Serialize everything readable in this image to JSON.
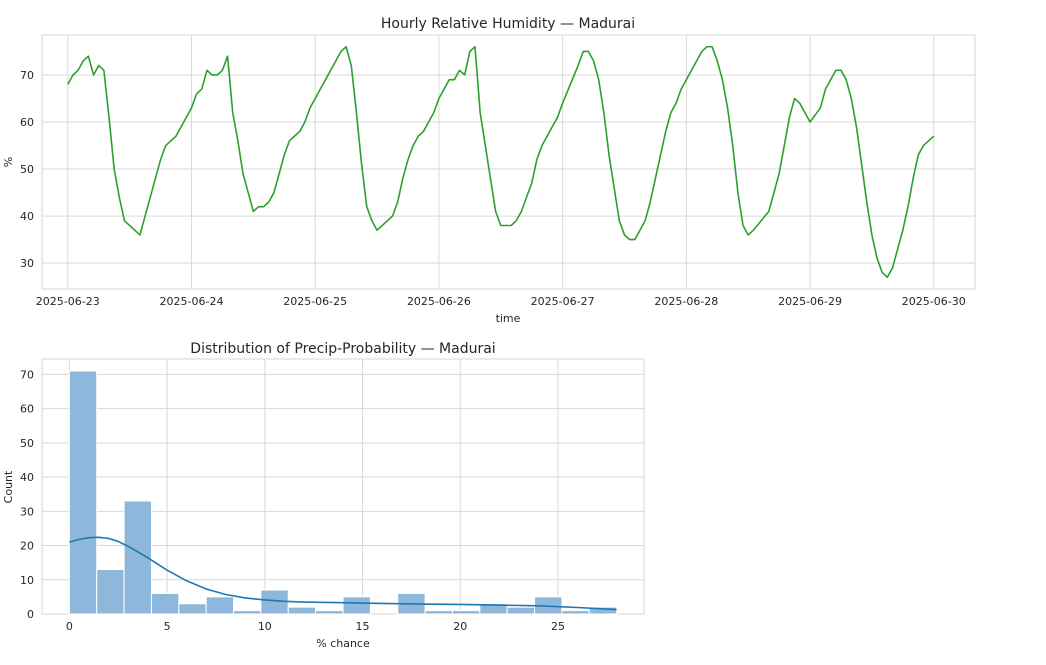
{
  "chart_data": [
    {
      "type": "line",
      "title": "Hourly Relative Humidity — Madurai",
      "xlabel": "time",
      "ylabel": "%",
      "xlim": [
        "2025-06-22 19:00",
        "2025-06-30 08:00"
      ],
      "ylim": [
        24.5,
        78.5
      ],
      "grid": true,
      "color": "#2ca02c",
      "x_ticks": [
        "2025-06-23",
        "2025-06-24",
        "2025-06-25",
        "2025-06-26",
        "2025-06-27",
        "2025-06-28",
        "2025-06-29",
        "2025-06-30"
      ],
      "y_ticks": [
        30,
        40,
        50,
        60,
        70
      ],
      "series": [
        {
          "points": [
            [
              "2025-06-23 00:00",
              68
            ],
            [
              "2025-06-23 01:00",
              70
            ],
            [
              "2025-06-23 02:00",
              71
            ],
            [
              "2025-06-23 03:00",
              73
            ],
            [
              "2025-06-23 04:00",
              74
            ],
            [
              "2025-06-23 05:00",
              70
            ],
            [
              "2025-06-23 06:00",
              72
            ],
            [
              "2025-06-23 07:00",
              71
            ],
            [
              "2025-06-23 08:00",
              61
            ],
            [
              "2025-06-23 09:00",
              50
            ],
            [
              "2025-06-23 10:00",
              44
            ],
            [
              "2025-06-23 11:00",
              39
            ],
            [
              "2025-06-23 14:00",
              36
            ],
            [
              "2025-06-23 15:00",
              40
            ],
            [
              "2025-06-23 17:00",
              48
            ],
            [
              "2025-06-23 18:00",
              52
            ],
            [
              "2025-06-23 19:00",
              55
            ],
            [
              "2025-06-23 21:00",
              57
            ],
            [
              "2025-06-24 00:00",
              63
            ],
            [
              "2025-06-24 01:00",
              66
            ],
            [
              "2025-06-24 02:00",
              67
            ],
            [
              "2025-06-24 03:00",
              71
            ],
            [
              "2025-06-24 04:00",
              70
            ],
            [
              "2025-06-24 05:00",
              70
            ],
            [
              "2025-06-24 06:00",
              71
            ],
            [
              "2025-06-24 07:00",
              74
            ],
            [
              "2025-06-24 08:00",
              62
            ],
            [
              "2025-06-24 09:00",
              56
            ],
            [
              "2025-06-24 10:00",
              49
            ],
            [
              "2025-06-24 11:00",
              45
            ],
            [
              "2025-06-24 12:00",
              41
            ],
            [
              "2025-06-24 13:00",
              42
            ],
            [
              "2025-06-24 14:00",
              42
            ],
            [
              "2025-06-24 15:00",
              43
            ],
            [
              "2025-06-24 16:00",
              45
            ],
            [
              "2025-06-24 17:00",
              49
            ],
            [
              "2025-06-24 18:00",
              53
            ],
            [
              "2025-06-24 19:00",
              56
            ],
            [
              "2025-06-24 20:00",
              57
            ],
            [
              "2025-06-24 21:00",
              58
            ],
            [
              "2025-06-24 22:00",
              60
            ],
            [
              "2025-06-24 23:00",
              63
            ],
            [
              "2025-06-25 03:00",
              71
            ],
            [
              "2025-06-25 05:00",
              75
            ],
            [
              "2025-06-25 06:00",
              76
            ],
            [
              "2025-06-25 07:00",
              72
            ],
            [
              "2025-06-25 08:00",
              62
            ],
            [
              "2025-06-25 09:00",
              51
            ],
            [
              "2025-06-25 10:00",
              42
            ],
            [
              "2025-06-25 11:00",
              39
            ],
            [
              "2025-06-25 12:00",
              37
            ],
            [
              "2025-06-25 15:00",
              40
            ],
            [
              "2025-06-25 16:00",
              43
            ],
            [
              "2025-06-25 17:00",
              48
            ],
            [
              "2025-06-25 18:00",
              52
            ],
            [
              "2025-06-25 19:00",
              55
            ],
            [
              "2025-06-25 20:00",
              57
            ],
            [
              "2025-06-25 21:00",
              58
            ],
            [
              "2025-06-25 22:00",
              60
            ],
            [
              "2025-06-25 23:00",
              62
            ],
            [
              "2025-06-26 00:00",
              65
            ],
            [
              "2025-06-26 01:00",
              67
            ],
            [
              "2025-06-26 02:00",
              69
            ],
            [
              "2025-06-26 03:00",
              69
            ],
            [
              "2025-06-26 04:00",
              71
            ],
            [
              "2025-06-26 05:00",
              70
            ],
            [
              "2025-06-26 06:00",
              75
            ],
            [
              "2025-06-26 07:00",
              76
            ],
            [
              "2025-06-26 08:00",
              62
            ],
            [
              "2025-06-26 09:00",
              55
            ],
            [
              "2025-06-26 10:00",
              48
            ],
            [
              "2025-06-26 11:00",
              41
            ],
            [
              "2025-06-26 12:00",
              38
            ],
            [
              "2025-06-26 14:00",
              38
            ],
            [
              "2025-06-26 15:00",
              39
            ],
            [
              "2025-06-26 16:00",
              41
            ],
            [
              "2025-06-26 17:00",
              44
            ],
            [
              "2025-06-26 18:00",
              47
            ],
            [
              "2025-06-26 19:00",
              52
            ],
            [
              "2025-06-26 20:00",
              55
            ],
            [
              "2025-06-26 23:00",
              61
            ],
            [
              "2025-06-27 00:00",
              64
            ],
            [
              "2025-06-27 03:00",
              72
            ],
            [
              "2025-06-27 04:00",
              75
            ],
            [
              "2025-06-27 05:00",
              75
            ],
            [
              "2025-06-27 06:00",
              73
            ],
            [
              "2025-06-27 07:00",
              69
            ],
            [
              "2025-06-27 08:00",
              62
            ],
            [
              "2025-06-27 09:00",
              53
            ],
            [
              "2025-06-27 10:00",
              46
            ],
            [
              "2025-06-27 11:00",
              39
            ],
            [
              "2025-06-27 12:00",
              36
            ],
            [
              "2025-06-27 13:00",
              35
            ],
            [
              "2025-06-27 14:00",
              35
            ],
            [
              "2025-06-27 15:00",
              37
            ],
            [
              "2025-06-27 16:00",
              39
            ],
            [
              "2025-06-27 17:00",
              43
            ],
            [
              "2025-06-27 18:00",
              48
            ],
            [
              "2025-06-27 19:00",
              53
            ],
            [
              "2025-06-27 20:00",
              58
            ],
            [
              "2025-06-27 21:00",
              62
            ],
            [
              "2025-06-27 22:00",
              64
            ],
            [
              "2025-06-27 23:00",
              67
            ],
            [
              "2025-06-28 03:00",
              75
            ],
            [
              "2025-06-28 04:00",
              76
            ],
            [
              "2025-06-28 05:00",
              76
            ],
            [
              "2025-06-28 06:00",
              73
            ],
            [
              "2025-06-28 07:00",
              69
            ],
            [
              "2025-06-28 08:00",
              63
            ],
            [
              "2025-06-28 09:00",
              55
            ],
            [
              "2025-06-28 10:00",
              45
            ],
            [
              "2025-06-28 11:00",
              38
            ],
            [
              "2025-06-28 12:00",
              36
            ],
            [
              "2025-06-28 13:00",
              37
            ],
            [
              "2025-06-28 16:00",
              41
            ],
            [
              "2025-06-28 18:00",
              49
            ],
            [
              "2025-06-28 19:00",
              55
            ],
            [
              "2025-06-28 20:00",
              61
            ],
            [
              "2025-06-28 21:00",
              65
            ],
            [
              "2025-06-28 22:00",
              64
            ],
            [
              "2025-06-29 00:00",
              60
            ],
            [
              "2025-06-29 02:00",
              63
            ],
            [
              "2025-06-29 03:00",
              67
            ],
            [
              "2025-06-29 05:00",
              71
            ],
            [
              "2025-06-29 06:00",
              71
            ],
            [
              "2025-06-29 07:00",
              69
            ],
            [
              "2025-06-29 08:00",
              65
            ],
            [
              "2025-06-29 09:00",
              59
            ],
            [
              "2025-06-29 10:00",
              51
            ],
            [
              "2025-06-29 11:00",
              43
            ],
            [
              "2025-06-29 12:00",
              36
            ],
            [
              "2025-06-29 13:00",
              31
            ],
            [
              "2025-06-29 14:00",
              28
            ],
            [
              "2025-06-29 15:00",
              27
            ],
            [
              "2025-06-29 16:00",
              29
            ],
            [
              "2025-06-29 17:00",
              33
            ],
            [
              "2025-06-29 18:00",
              37
            ],
            [
              "2025-06-29 19:00",
              42
            ],
            [
              "2025-06-29 20:00",
              48
            ],
            [
              "2025-06-29 21:00",
              53
            ],
            [
              "2025-06-29 22:00",
              55
            ],
            [
              "2025-06-29 23:00",
              56
            ],
            [
              "2025-06-30 00:00",
              57
            ]
          ]
        }
      ]
    },
    {
      "type": "histogram",
      "title": "Distribution of Precip-Probability — Madurai",
      "xlabel": "% chance",
      "ylabel": "Count",
      "xlim": [
        -1.4,
        29.4
      ],
      "ylim": [
        0,
        74.5
      ],
      "grid": true,
      "bar_color": "#8db8db",
      "kde_color": "#1f77b4",
      "x_ticks": [
        0,
        5,
        10,
        15,
        20,
        25
      ],
      "y_ticks": [
        0,
        10,
        20,
        30,
        40,
        50,
        60,
        70
      ],
      "bins": [
        {
          "x0": 0.0,
          "x1": 1.4,
          "count": 71
        },
        {
          "x0": 1.4,
          "x1": 2.8,
          "count": 13
        },
        {
          "x0": 2.8,
          "x1": 4.2,
          "count": 33
        },
        {
          "x0": 4.2,
          "x1": 5.6,
          "count": 6
        },
        {
          "x0": 5.6,
          "x1": 7.0,
          "count": 3
        },
        {
          "x0": 7.0,
          "x1": 8.4,
          "count": 5
        },
        {
          "x0": 8.4,
          "x1": 9.8,
          "count": 1
        },
        {
          "x0": 9.8,
          "x1": 11.2,
          "count": 7
        },
        {
          "x0": 11.2,
          "x1": 12.6,
          "count": 2
        },
        {
          "x0": 12.6,
          "x1": 14.0,
          "count": 1
        },
        {
          "x0": 14.0,
          "x1": 15.4,
          "count": 5
        },
        {
          "x0": 15.4,
          "x1": 16.8,
          "count": 0
        },
        {
          "x0": 16.8,
          "x1": 18.2,
          "count": 6
        },
        {
          "x0": 18.2,
          "x1": 19.6,
          "count": 1
        },
        {
          "x0": 19.6,
          "x1": 21.0,
          "count": 1
        },
        {
          "x0": 21.0,
          "x1": 22.4,
          "count": 3
        },
        {
          "x0": 22.4,
          "x1": 23.8,
          "count": 2
        },
        {
          "x0": 23.8,
          "x1": 25.2,
          "count": 5
        },
        {
          "x0": 25.2,
          "x1": 26.6,
          "count": 1
        },
        {
          "x0": 26.6,
          "x1": 28.0,
          "count": 2
        }
      ],
      "kde": [
        [
          0,
          21
        ],
        [
          0.5,
          21.8
        ],
        [
          1,
          22.3
        ],
        [
          1.5,
          22.4
        ],
        [
          2,
          22.1
        ],
        [
          2.5,
          21.2
        ],
        [
          3,
          19.8
        ],
        [
          4,
          16.5
        ],
        [
          5,
          12.8
        ],
        [
          6,
          9.7
        ],
        [
          7,
          7.3
        ],
        [
          8,
          5.7
        ],
        [
          9,
          4.7
        ],
        [
          10,
          4.1
        ],
        [
          11,
          3.7
        ],
        [
          12,
          3.5
        ],
        [
          14,
          3.3
        ],
        [
          16,
          3.1
        ],
        [
          18,
          2.9
        ],
        [
          20,
          2.8
        ],
        [
          22,
          2.6
        ],
        [
          24,
          2.4
        ],
        [
          26,
          1.9
        ],
        [
          28,
          1.3
        ]
      ]
    }
  ]
}
